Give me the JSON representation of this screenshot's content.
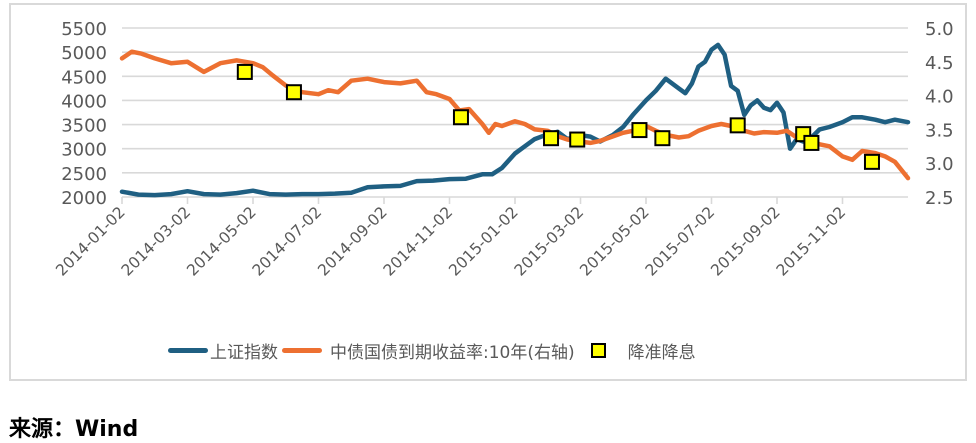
{
  "source_label": "来源：Wind",
  "legend": {
    "series1": "上证指数",
    "series2": "中债国债到期收益率:10年(右轴)",
    "markers": "降准降息"
  },
  "colors": {
    "series1": "#1f5f82",
    "series2": "#ed7031",
    "marker_fill": "#ffff00",
    "marker_stroke": "#000000",
    "grid": "#d9d9d9",
    "axis_text": "#595959"
  },
  "chart_data": {
    "type": "line",
    "title": "",
    "xlabel": "",
    "ylabel": "上证指数",
    "y2label": "中债国债到期收益率:10年",
    "x_ticks": [
      "2014-01-02",
      "2014-03-02",
      "2014-05-02",
      "2014-07-02",
      "2014-09-02",
      "2014-11-02",
      "2015-01-02",
      "2015-03-02",
      "2015-05-02",
      "2015-07-02",
      "2015-09-02",
      "2015-11-02"
    ],
    "x_range_months": [
      0,
      24
    ],
    "ylim": [
      2000,
      5500
    ],
    "y_ticks": [
      2000,
      2500,
      3000,
      3500,
      4000,
      4500,
      5000,
      5500
    ],
    "y2lim": [
      2.5,
      5.0
    ],
    "y2_ticks": [
      "2.5",
      "3.0",
      "3.5",
      "4.0",
      "4.5",
      "5.0"
    ],
    "grid": true,
    "legend_position": "bottom",
    "series": [
      {
        "name": "上证指数",
        "axis": "left",
        "x_months": [
          0,
          0.5,
          1,
          1.5,
          2,
          2.5,
          3,
          3.5,
          4,
          4.5,
          5,
          5.5,
          6,
          6.5,
          7,
          7.5,
          8,
          8.5,
          9,
          9.5,
          10,
          10.5,
          11,
          11.3,
          11.6,
          12,
          12.3,
          12.6,
          13,
          13.3,
          13.6,
          14,
          14.3,
          14.6,
          15,
          15.3,
          15.6,
          16,
          16.3,
          16.6,
          17,
          17.2,
          17.4,
          17.6,
          17.8,
          18,
          18.2,
          18.4,
          18.6,
          18.8,
          19,
          19.2,
          19.4,
          19.6,
          19.8,
          20,
          20.2,
          20.4,
          20.6,
          20.8,
          21,
          21.3,
          21.6,
          22,
          22.3,
          22.6,
          23,
          23.3,
          23.6,
          24
        ],
        "values": [
          2110,
          2050,
          2040,
          2060,
          2120,
          2060,
          2050,
          2080,
          2130,
          2060,
          2050,
          2060,
          2060,
          2070,
          2090,
          2200,
          2220,
          2230,
          2330,
          2340,
          2370,
          2380,
          2470,
          2470,
          2600,
          2900,
          3050,
          3200,
          3300,
          3350,
          3200,
          3280,
          3250,
          3150,
          3290,
          3450,
          3700,
          4000,
          4200,
          4450,
          4250,
          4150,
          4350,
          4700,
          4800,
          5050,
          5150,
          4950,
          4300,
          4200,
          3700,
          3900,
          4000,
          3850,
          3800,
          3950,
          3750,
          3000,
          3200,
          3150,
          3200,
          3400,
          3450,
          3550,
          3650,
          3650,
          3600,
          3550,
          3600,
          3550
        ]
      },
      {
        "name": "中债国债到期收益率:10年(右轴)",
        "axis": "right",
        "x_months": [
          0,
          0.3,
          0.6,
          1,
          1.5,
          2,
          2.5,
          3,
          3.5,
          4,
          4.3,
          4.6,
          5,
          5.5,
          6,
          6.3,
          6.6,
          7,
          7.5,
          8,
          8.5,
          9,
          9.3,
          9.6,
          10,
          10.3,
          10.6,
          11,
          11.2,
          11.4,
          11.6,
          12,
          12.3,
          12.6,
          13,
          13.3,
          13.6,
          14,
          14.3,
          14.6,
          15,
          15.3,
          15.6,
          16,
          16.3,
          16.6,
          17,
          17.3,
          17.6,
          18,
          18.3,
          18.6,
          19,
          19.3,
          19.6,
          20,
          20.3,
          20.6,
          21,
          21.3,
          21.6,
          22,
          22.3,
          22.6,
          23,
          23.3,
          23.6,
          24
        ],
        "values": [
          4.55,
          4.65,
          4.62,
          4.55,
          4.48,
          4.5,
          4.35,
          4.48,
          4.52,
          4.48,
          4.42,
          4.3,
          4.15,
          4.05,
          4.02,
          4.08,
          4.05,
          4.22,
          4.25,
          4.2,
          4.18,
          4.22,
          4.05,
          4.02,
          3.95,
          3.78,
          3.8,
          3.58,
          3.45,
          3.58,
          3.55,
          3.62,
          3.58,
          3.5,
          3.48,
          3.4,
          3.35,
          3.32,
          3.3,
          3.33,
          3.4,
          3.45,
          3.48,
          3.55,
          3.48,
          3.42,
          3.38,
          3.4,
          3.48,
          3.55,
          3.58,
          3.55,
          3.48,
          3.44,
          3.46,
          3.45,
          3.48,
          3.38,
          3.33,
          3.28,
          3.25,
          3.1,
          3.05,
          3.18,
          3.15,
          3.1,
          3.02,
          2.78
        ]
      }
    ],
    "markers": {
      "name": "降准降息",
      "axis": "right",
      "x_months": [
        3.75,
        5.25,
        10.35,
        13.1,
        13.9,
        15.8,
        16.5,
        18.8,
        20.8,
        21.05,
        22.9
      ],
      "values": [
        4.35,
        4.05,
        3.68,
        3.37,
        3.35,
        3.49,
        3.37,
        3.56,
        3.43,
        3.3,
        3.02
      ]
    }
  }
}
